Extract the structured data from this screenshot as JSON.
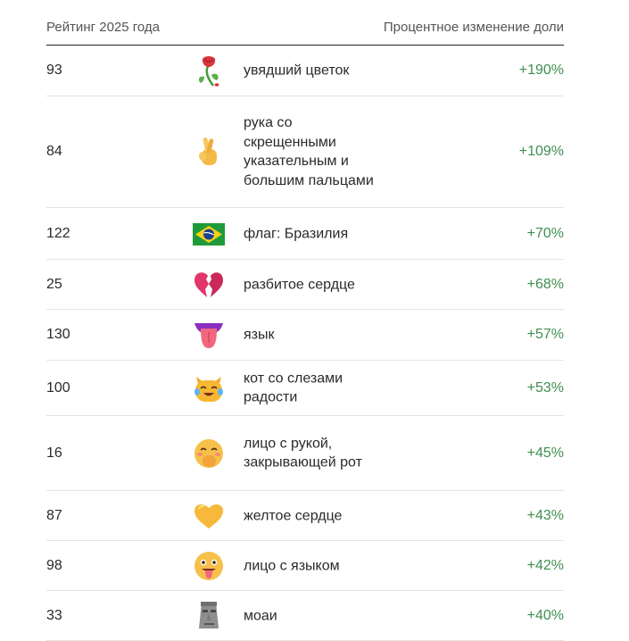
{
  "table": {
    "header_rank": "Рейтинг 2025 года",
    "header_change": "Процентное изменение доли",
    "rows": [
      {
        "rank": "93",
        "icon": "wilted-flower-icon",
        "name": "увядший цветок",
        "change": "+190%"
      },
      {
        "rank": "84",
        "icon": "crossed-fingers-icon",
        "name": "рука со скрещенными указательным и большим пальцами",
        "change": "+109%"
      },
      {
        "rank": "122",
        "icon": "brazil-flag-icon",
        "name": "флаг: Бразилия",
        "change": "+70%"
      },
      {
        "rank": "25",
        "icon": "broken-heart-icon",
        "name": "разбитое сердце",
        "change": "+68%"
      },
      {
        "rank": "130",
        "icon": "tongue-icon",
        "name": "язык",
        "change": "+57%"
      },
      {
        "rank": "100",
        "icon": "cat-tears-of-joy-icon",
        "name": "кот со слезами радости",
        "change": "+53%"
      },
      {
        "rank": "16",
        "icon": "hand-over-mouth-face-icon",
        "name": "лицо с рукой, закрывающей рот",
        "change": "+45%"
      },
      {
        "rank": "87",
        "icon": "yellow-heart-icon",
        "name": "желтое сердце",
        "change": "+43%"
      },
      {
        "rank": "98",
        "icon": "face-with-tongue-icon",
        "name": "лицо с языком",
        "change": "+42%"
      },
      {
        "rank": "33",
        "icon": "moai-icon",
        "name": "моаи",
        "change": "+40%"
      }
    ]
  },
  "colors": {
    "positive": "#3f8f4f",
    "divider": "#e4e4e4",
    "header_rule": "#1f1f1f"
  }
}
